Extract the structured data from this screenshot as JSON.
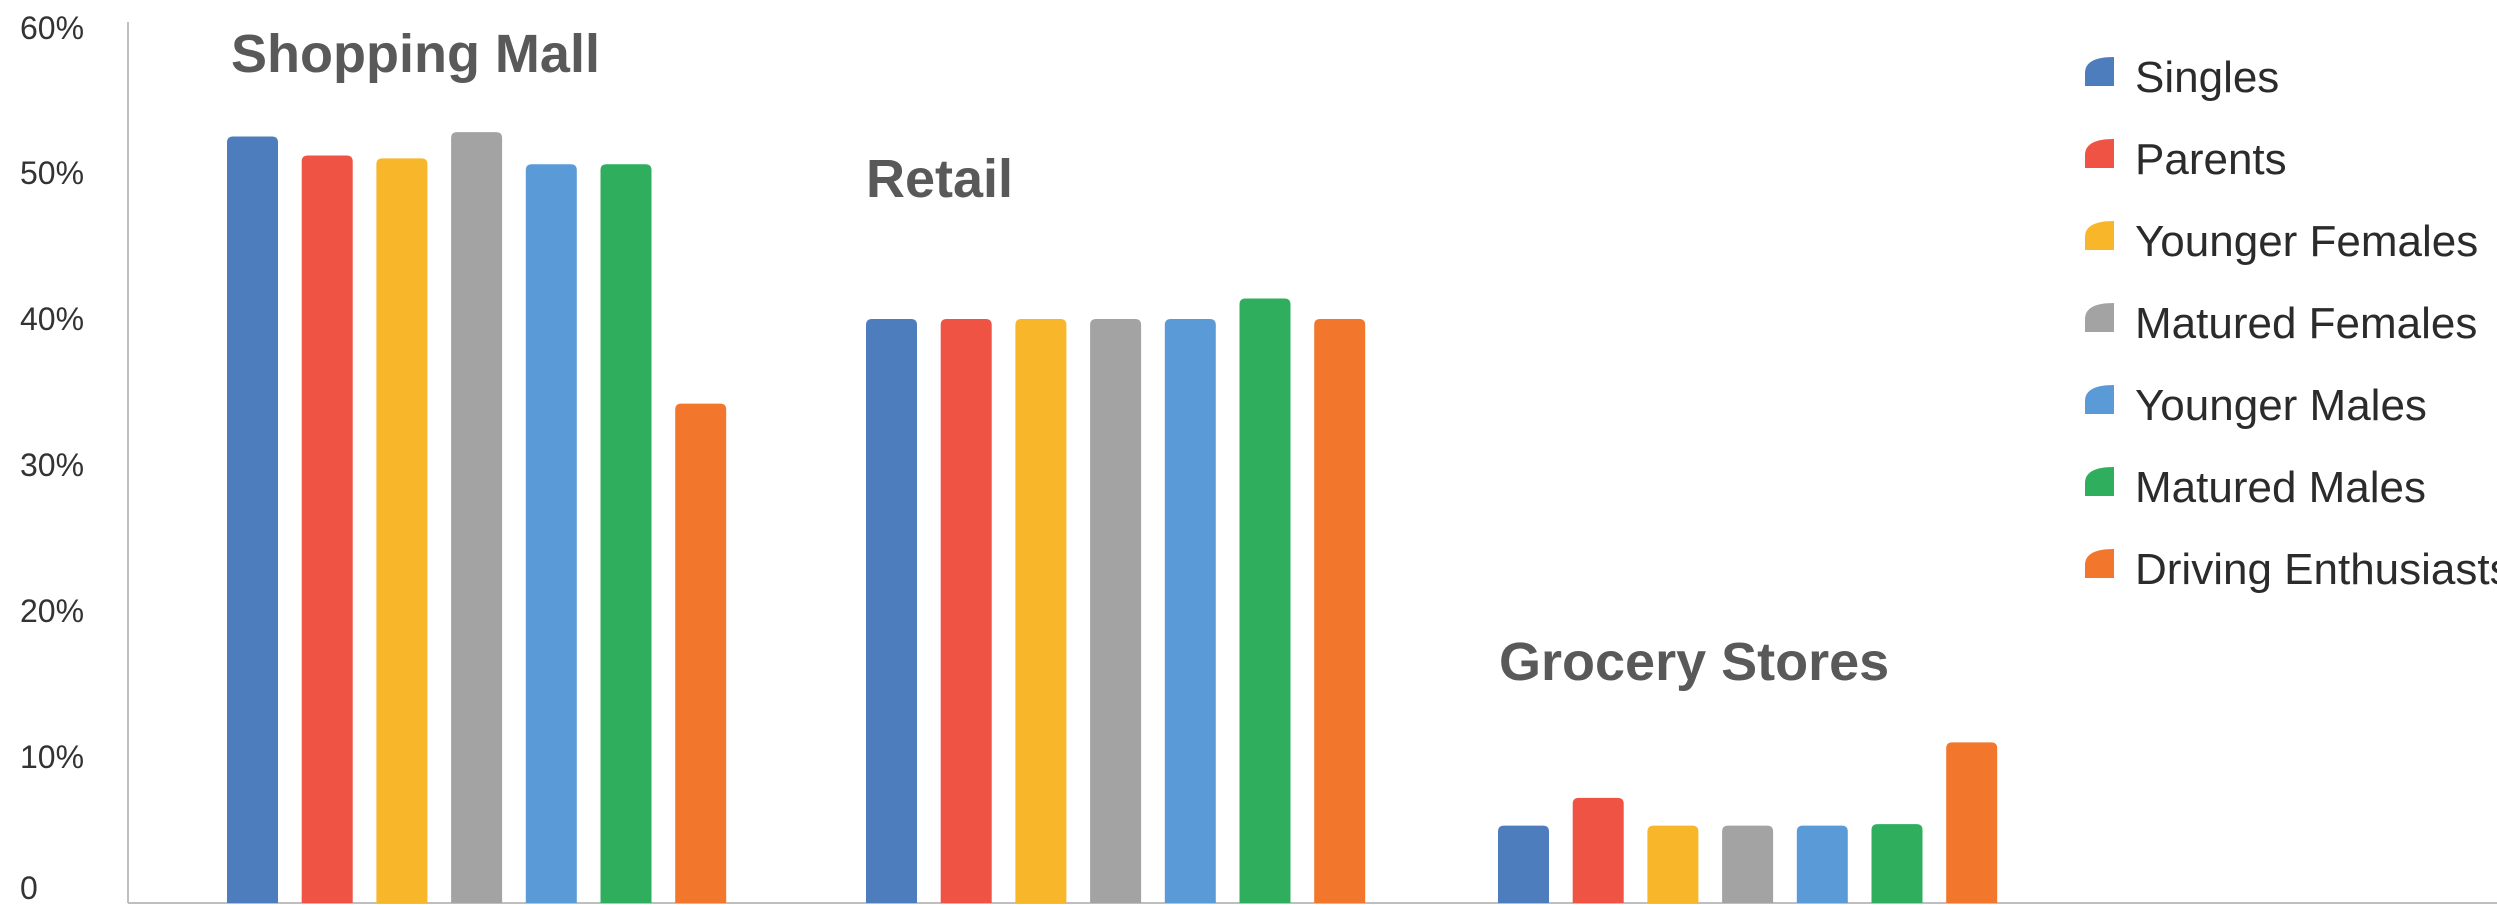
{
  "chart_data": {
    "type": "bar",
    "categories": [
      "Shopping Mall",
      "Retail",
      "Grocery Stores"
    ],
    "series": [
      {
        "name": "Singles",
        "color": "#4E7DBE",
        "values": [
          52.5,
          40.0,
          5.3
        ]
      },
      {
        "name": "Parents",
        "color": "#EE5344",
        "values": [
          51.2,
          40.0,
          7.2
        ]
      },
      {
        "name": "Younger Females",
        "color": "#F8B62B",
        "values": [
          51.0,
          40.0,
          5.3
        ]
      },
      {
        "name": "Matured Females",
        "color": "#A3A3A3",
        "values": [
          52.8,
          40.0,
          5.3
        ]
      },
      {
        "name": "Younger Males",
        "color": "#5A9BD7",
        "values": [
          50.6,
          40.0,
          5.3
        ]
      },
      {
        "name": "Matured Males",
        "color": "#2FAE5E",
        "values": [
          50.6,
          41.4,
          5.4
        ]
      },
      {
        "name": "Driving Enthusiasts",
        "color": "#F2772C",
        "values": [
          34.2,
          40.0,
          11.0
        ]
      }
    ],
    "yticks": [
      "0",
      "10%",
      "20%",
      "30%",
      "40%",
      "50%",
      "60%"
    ],
    "ylim": [
      0,
      60
    ],
    "legend_position": "right",
    "grid": false
  }
}
